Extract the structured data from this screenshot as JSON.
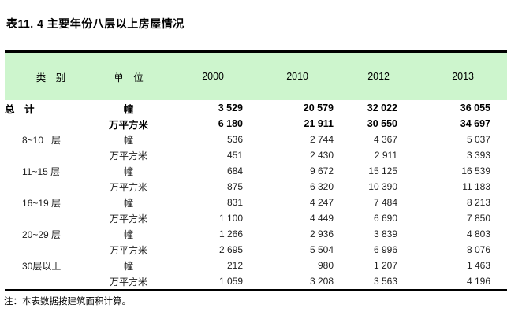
{
  "title": "表11. 4 主要年份八层以上房屋情况",
  "header": {
    "category": "类　别",
    "unit": "单　位",
    "years": [
      "2000",
      "2010",
      "2012",
      "2013"
    ]
  },
  "rows": [
    {
      "category": "总　计",
      "unit": "幢",
      "values": [
        "3 529",
        "20 579",
        "32 022",
        "36 055"
      ],
      "bold": true
    },
    {
      "category": "",
      "unit": "万平方米",
      "values": [
        "6 180",
        "21 911",
        "30 550",
        "34 697"
      ],
      "bold": true
    },
    {
      "category": "8~10   层",
      "unit": "幢",
      "values": [
        "536",
        "2 744",
        "4 367",
        "5 037"
      ],
      "bold": false
    },
    {
      "category": "",
      "unit": "万平方米",
      "values": [
        "451",
        "2 430",
        "2 911",
        "3 393"
      ],
      "bold": false
    },
    {
      "category": "11~15 层",
      "unit": "幢",
      "values": [
        "684",
        "9 672",
        "15 125",
        "16 539"
      ],
      "bold": false
    },
    {
      "category": "",
      "unit": "万平方米",
      "values": [
        "875",
        "6 320",
        "10 390",
        "11 183"
      ],
      "bold": false
    },
    {
      "category": "16~19 层",
      "unit": "幢",
      "values": [
        "831",
        "4 247",
        "7 484",
        "8 213"
      ],
      "bold": false
    },
    {
      "category": "",
      "unit": "万平方米",
      "values": [
        "1 100",
        "4 449",
        "6 690",
        "7 850"
      ],
      "bold": false
    },
    {
      "category": "20~29 层",
      "unit": "幢",
      "values": [
        "1 266",
        "2 936",
        "3 839",
        "4 803"
      ],
      "bold": false
    },
    {
      "category": "",
      "unit": "万平方米",
      "values": [
        "2 695",
        "5 504",
        "6 996",
        "8 076"
      ],
      "bold": false
    },
    {
      "category": "30层以上",
      "unit": "幢",
      "values": [
        "212",
        "980",
        "1 207",
        "1 463"
      ],
      "bold": false
    },
    {
      "category": "",
      "unit": "万平方米",
      "values": [
        "1 059",
        "3 208",
        "3 563",
        "4 196"
      ],
      "bold": false
    }
  ],
  "footnote": "注：本表数据按建筑面积计算。",
  "colors": {
    "header_bg": "#cdf5cd",
    "rule": "#000000"
  }
}
